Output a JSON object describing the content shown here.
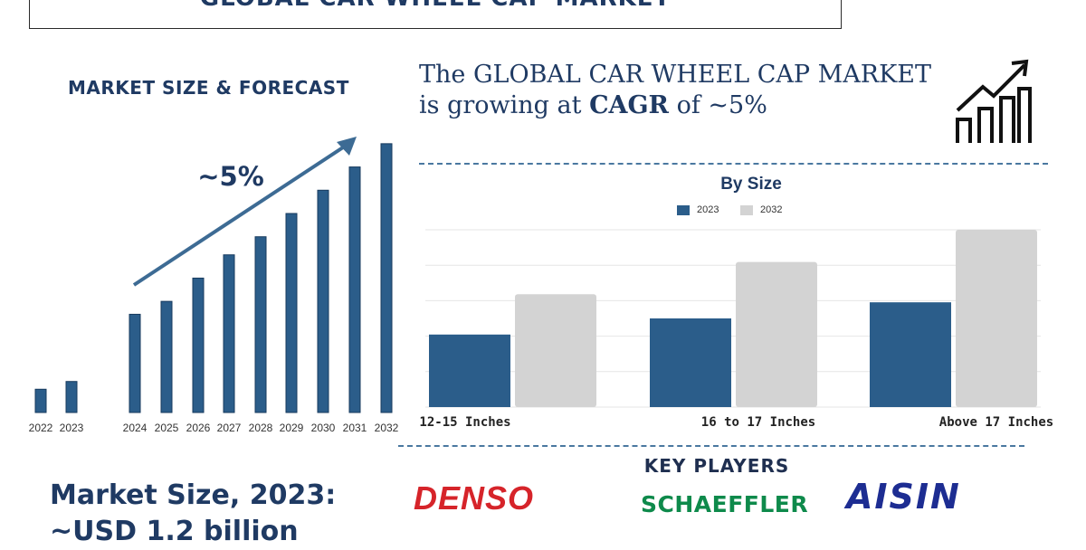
{
  "header": {
    "title": "GLOBAL CAR WHEEL CAP MARKET"
  },
  "left_panel": {
    "heading": "MARKET SIZE & FORECAST",
    "cagr_label": "~5%",
    "market_size_line1": "Market Size, 2023:",
    "market_size_line2": "~USD 1.2 billion"
  },
  "right_panel": {
    "cagr_line1": "The GLOBAL CAR WHEEL CAP MARKET",
    "cagr_line2_prefix": "is growing at ",
    "cagr_line2_bold": "CAGR",
    "cagr_line2_suffix": " of ~5%",
    "growth_icon": "bar-chart-growth-icon"
  },
  "key_players": {
    "heading": "KEY PLAYERS",
    "logos": [
      "DENSO",
      "SCHAEFFLER",
      "AISIN"
    ]
  },
  "colors": {
    "navy": "#1f3a63",
    "bar_blue": "#2b5d8a",
    "bar_gray": "#d3d3d3",
    "arrow": "#3d6b94"
  },
  "chart_data": [
    {
      "type": "bar",
      "title": "MARKET SIZE & FORECAST",
      "categories": [
        "2022",
        "2023",
        "2024",
        "2025",
        "2026",
        "2027",
        "2028",
        "2029",
        "2030",
        "2031",
        "2032"
      ],
      "values": [
        0.9,
        1.2,
        3.8,
        4.3,
        5.2,
        6.1,
        6.8,
        7.7,
        8.6,
        9.5,
        10.4
      ],
      "annotation": "~5%",
      "ylim": [
        0,
        10.5
      ],
      "grid": false
    },
    {
      "type": "bar",
      "title": "By Size",
      "categories": [
        "12-15 Inches",
        "16 to 17 Inches",
        "Above 17 Inches"
      ],
      "series": [
        {
          "name": "2023",
          "values": [
            1.8,
            2.2,
            2.6
          ]
        },
        {
          "name": "2032",
          "values": [
            2.8,
            3.6,
            4.4
          ]
        }
      ],
      "ylim": [
        0,
        4.4
      ],
      "grid": true,
      "legend": "top-center"
    }
  ]
}
